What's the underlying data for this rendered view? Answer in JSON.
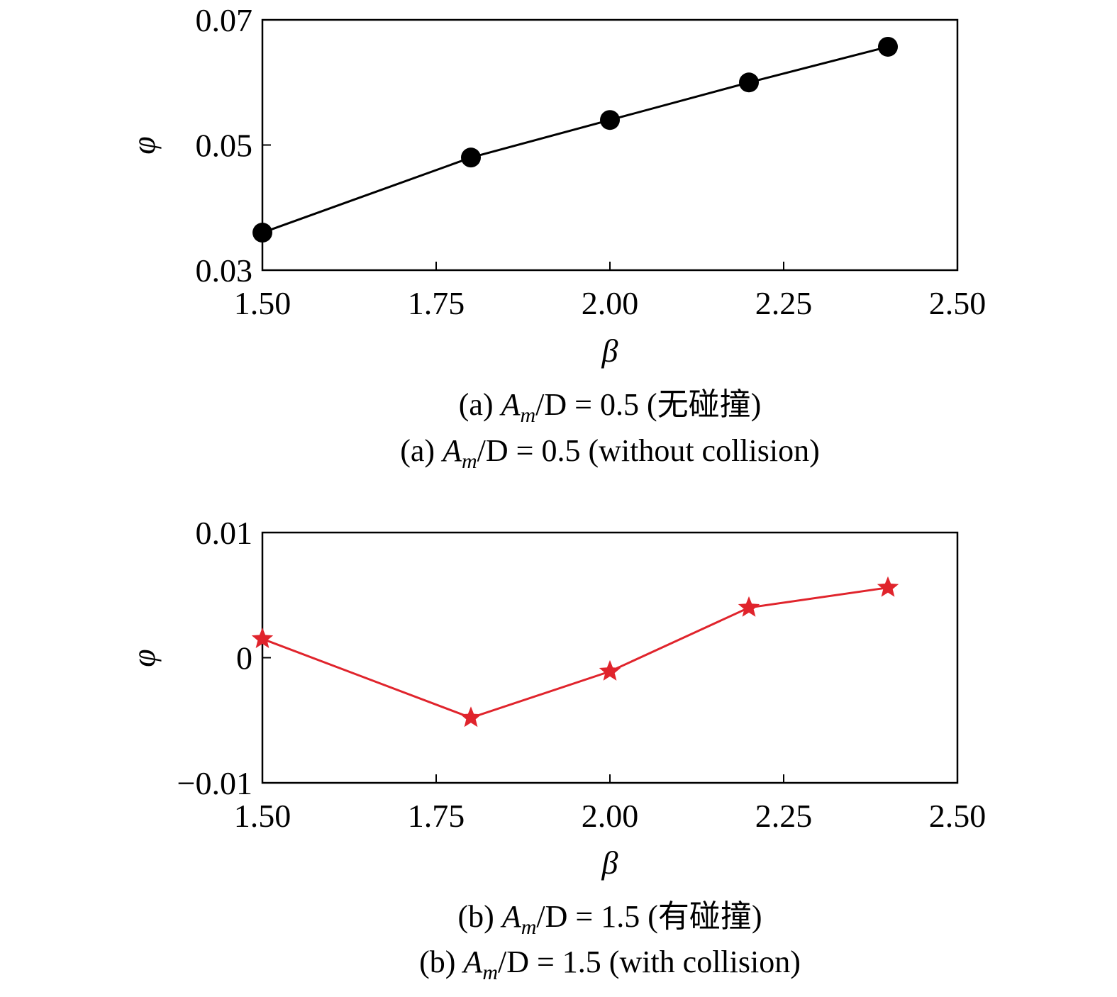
{
  "chart_data": [
    {
      "type": "line",
      "xlabel": "β",
      "ylabel": "φ",
      "xlim": [
        1.5,
        2.5
      ],
      "ylim": [
        0.03,
        0.07
      ],
      "xticks": [
        "1.50",
        "1.75",
        "2.00",
        "2.25",
        "2.50"
      ],
      "yticks": [
        "0.03",
        "0.05",
        "0.07"
      ],
      "grid": false,
      "series": [
        {
          "x": [
            1.5,
            1.8,
            2.0,
            2.2,
            2.4
          ],
          "y": [
            0.036,
            0.048,
            0.054,
            0.06,
            0.0657
          ],
          "color": "#000000",
          "marker": "circle"
        }
      ],
      "caption_cn": {
        "prefix": "(a) ",
        "var": "A",
        "sub": "m",
        "rest": "/D = 0.5 (无碰撞)"
      },
      "caption_en": {
        "prefix": "(a) ",
        "var": "A",
        "sub": "m",
        "rest": "/D = 0.5 (without collision)"
      }
    },
    {
      "type": "line",
      "xlabel": "β",
      "ylabel": "φ",
      "xlim": [
        1.5,
        2.5
      ],
      "ylim": [
        -0.01,
        0.01
      ],
      "xticks": [
        "1.50",
        "1.75",
        "2.00",
        "2.25",
        "2.50"
      ],
      "yticks": [
        "−0.01",
        "0",
        "0.01"
      ],
      "grid": false,
      "series": [
        {
          "x": [
            1.5,
            1.8,
            2.0,
            2.2,
            2.4
          ],
          "y": [
            0.0015,
            -0.0048,
            -0.0011,
            0.004,
            0.0056
          ],
          "color": "#e0242c",
          "marker": "star"
        }
      ],
      "caption_cn": {
        "prefix": "(b) ",
        "var": "A",
        "sub": "m",
        "rest": "/D = 1.5 (有碰撞)"
      },
      "caption_en": {
        "prefix": "(b) ",
        "var": "A",
        "sub": "m",
        "rest": "/D = 1.5 (with collision)"
      }
    }
  ]
}
